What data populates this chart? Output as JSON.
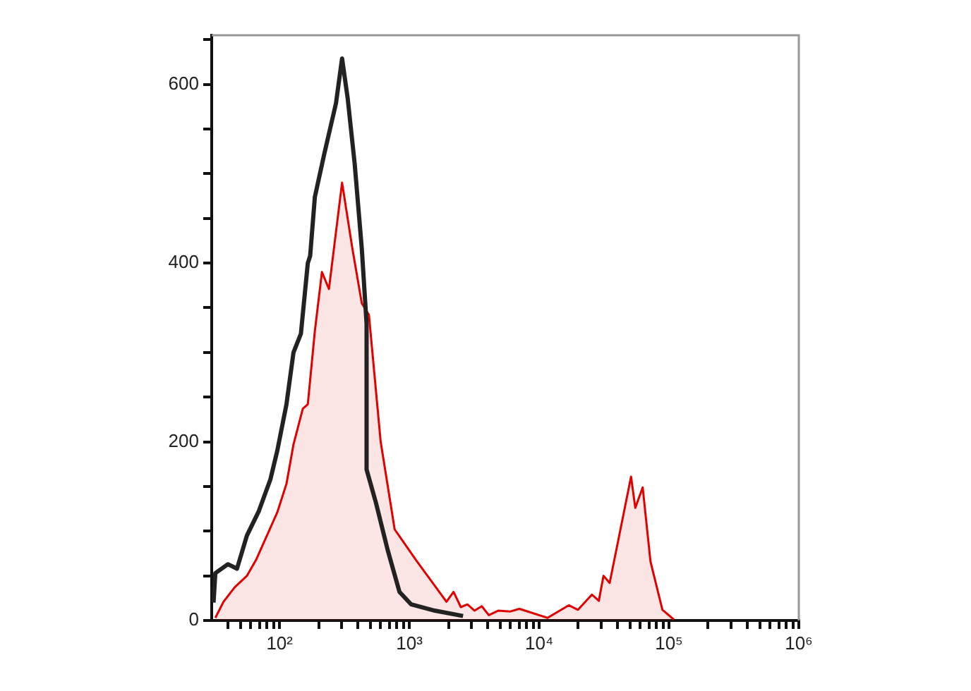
{
  "chart_data": {
    "type": "line",
    "log": "x",
    "grid": false,
    "legend": false,
    "marker": "none",
    "line_style": "solid",
    "xlim": [
      30,
      1000000
    ],
    "ylim": [
      0,
      655
    ],
    "xticks": [
      {
        "value": 40,
        "label": null
      },
      {
        "value": 50,
        "label": null
      },
      {
        "value": 60,
        "label": null
      },
      {
        "value": 70,
        "label": null
      },
      {
        "value": 80,
        "label": null
      },
      {
        "value": 90,
        "label": null
      },
      {
        "value": 100,
        "label": "10²"
      },
      {
        "value": 200,
        "label": null
      },
      {
        "value": 300,
        "label": null
      },
      {
        "value": 400,
        "label": null
      },
      {
        "value": 500,
        "label": null
      },
      {
        "value": 600,
        "label": null
      },
      {
        "value": 700,
        "label": null
      },
      {
        "value": 800,
        "label": null
      },
      {
        "value": 900,
        "label": null
      },
      {
        "value": 1000,
        "label": "10³"
      },
      {
        "value": 2000,
        "label": null
      },
      {
        "value": 3000,
        "label": null
      },
      {
        "value": 4000,
        "label": null
      },
      {
        "value": 5000,
        "label": null
      },
      {
        "value": 6000,
        "label": null
      },
      {
        "value": 7000,
        "label": null
      },
      {
        "value": 8000,
        "label": null
      },
      {
        "value": 9000,
        "label": null
      },
      {
        "value": 10000,
        "label": "10⁴"
      },
      {
        "value": 20000,
        "label": null
      },
      {
        "value": 30000,
        "label": null
      },
      {
        "value": 40000,
        "label": null
      },
      {
        "value": 50000,
        "label": null
      },
      {
        "value": 60000,
        "label": null
      },
      {
        "value": 70000,
        "label": null
      },
      {
        "value": 80000,
        "label": null
      },
      {
        "value": 90000,
        "label": null
      },
      {
        "value": 100000,
        "label": "10⁵"
      },
      {
        "value": 200000,
        "label": null
      },
      {
        "value": 300000,
        "label": null
      },
      {
        "value": 400000,
        "label": null
      },
      {
        "value": 500000,
        "label": null
      },
      {
        "value": 600000,
        "label": null
      },
      {
        "value": 700000,
        "label": null
      },
      {
        "value": 800000,
        "label": null
      },
      {
        "value": 900000,
        "label": null
      },
      {
        "value": 1000000,
        "label": "10⁶"
      }
    ],
    "yticks": [
      0,
      {
        "value": 50,
        "label": null
      },
      {
        "value": 100,
        "label": null
      },
      {
        "value": 150,
        "label": null
      },
      200,
      {
        "value": 250,
        "label": null
      },
      {
        "value": 300,
        "label": null
      },
      {
        "value": 350,
        "label": null
      },
      400,
      {
        "value": 450,
        "label": null
      },
      {
        "value": 500,
        "label": null
      },
      {
        "value": 550,
        "label": null
      },
      600,
      {
        "value": 650,
        "label": null
      }
    ],
    "series": [
      {
        "type": "area",
        "color": "#e00000",
        "x": [
          32,
          37,
          45,
          56,
          66,
          81,
          96,
          113,
          128,
          151,
          165,
          187,
          212,
          240,
          303,
          364,
          430,
          488,
          601,
          770,
          1120,
          1930,
          2190,
          2490,
          2800,
          3180,
          3610,
          4090,
          4830,
          5940,
          7040,
          11600,
          16900,
          19900,
          25500,
          28800,
          31300,
          34900,
          44200,
          51000,
          55000,
          62700,
          72000,
          89000,
          109000
        ],
        "values": [
          3,
          21,
          37,
          50,
          68,
          97,
          121,
          153,
          197,
          237,
          242,
          324,
          390,
          371,
          490,
          416,
          355,
          342,
          200,
          102,
          68,
          21,
          32,
          15,
          18,
          11,
          16,
          6,
          11,
          10,
          13,
          3,
          17,
          12,
          29,
          22,
          50,
          42,
          116,
          161,
          126,
          149,
          66,
          12,
          1
        ]
      },
      {
        "color": "#222222",
        "x": [
          31,
          32,
          40,
          47,
          56,
          69,
          85,
          96,
          113,
          128,
          146,
          165,
          172,
          187,
          220,
          272,
          303,
          335,
          379,
          430,
          468,
          468,
          552,
          680,
          839,
          1033,
          1570,
          2590
        ],
        "values": [
          20,
          53,
          63,
          58,
          95,
          122,
          158,
          190,
          242,
          300,
          321,
          400,
          408,
          474,
          521,
          579,
          629,
          584,
          511,
          416,
          332,
          169,
          132,
          79,
          32,
          18,
          11,
          5
        ]
      }
    ]
  }
}
